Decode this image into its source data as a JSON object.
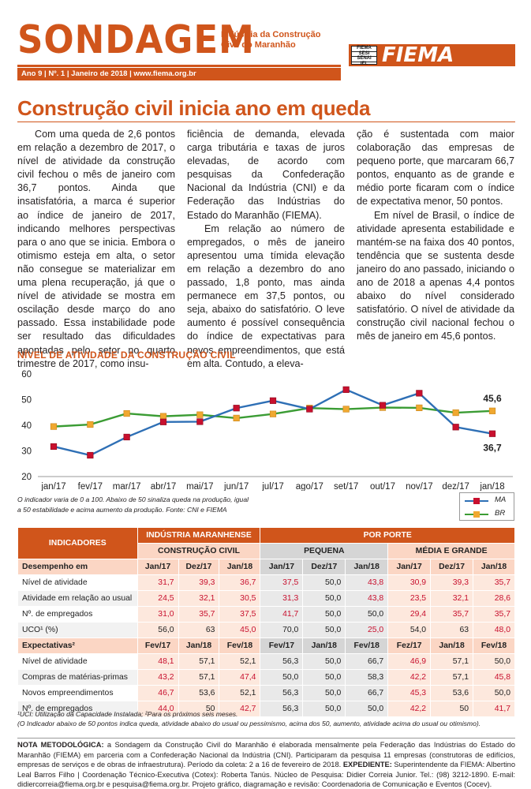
{
  "header": {
    "brand": "SONDAGEM",
    "subtitle_line1": "Indústria da Construção",
    "subtitle_line2": "Civil do Maranhão",
    "edition": "Ano 9 | Nº. 1 | Janeiro de 2018 | www.fiema.org.br",
    "logo_stack": [
      "FIEMA",
      "SESI",
      "SENAI",
      "IEL"
    ],
    "logo": "FIEMA",
    "accent_color": "#d0551b"
  },
  "article": {
    "headline": "Construção civil inicia ano em queda",
    "col1": [
      "Com uma queda de 2,6 pontos em relação a dezembro de 2017, o nível de atividade da construção civil fechou o mês de janeiro com 36,7 pontos. Ainda que insatisfatória, a marca é superior ao índice de janeiro de 2017, indicando melhores perspectivas para o ano que se inicia. Embora o otimismo esteja em alta, o setor não consegue se materializar em uma plena recuperação, já que o nível de atividade se mostra em oscilação desde março do ano passado. Essa instabilidade pode ser resultado das dificuldades apontadas pelo setor no quarto trimestre de 2017, como insu-"
    ],
    "col2_cont": "ficiência de demanda, elevada carga tributária e taxas de juros elevadas, de acordo com pesquisas da Confederação Nacional da Indústria (CNI) e da Federação das Indústrias do Estado do Maranhão (FIEMA).",
    "col2_p2": "Em relação ao número de empregados, o mês de janeiro apresentou uma tímida elevação em relação a dezembro do ano passado, 1,8 ponto, mas ainda permanece em 37,5 pontos, ou seja, abaixo do satisfatório. O leve aumento é possível consequência do índice de expectativas para novos empreendimentos, que está em alta. Contudo, a eleva-",
    "col3_cont": "ção é sustentada com maior colaboração das empresas de pequeno porte, que marcaram 66,7 pontos, enquanto as de grande e médio porte ficaram com o índice de expectativa menor, 50 pontos.",
    "col3_p2": "Em nível de Brasil, o índice de atividade apresenta estabilidade e mantém-se na faixa dos 40 pontos, tendência que se sustenta desde janeiro do ano passado, iniciando o ano de 2018 a apenas 4,4 pontos abaixo do nível considerado satisfatório. O nível de atividade da construção civil nacional fechou o mês de janeiro em 45,6 pontos."
  },
  "chart_title": "NÍVEL DE ATIVIDADE DA CONSTRUÇÃO CIVIL",
  "chart_data": {
    "type": "line",
    "categories": [
      "jan/17",
      "fev/17",
      "mar/17",
      "abr/17",
      "mai/17",
      "jun/17",
      "jul/17",
      "ago/17",
      "set/17",
      "out/17",
      "nov/17",
      "dez/17",
      "jan/18"
    ],
    "series": [
      {
        "name": "MA",
        "color": "#2e6fb5",
        "marker_color": "#c8102e",
        "marker": "square",
        "values": [
          31.7,
          28.3,
          35.4,
          41.3,
          41.4,
          46.7,
          49.6,
          46.3,
          53.9,
          47.8,
          52.5,
          39.3,
          36.7
        ]
      },
      {
        "name": "BR",
        "color": "#3b9c34",
        "marker_color": "#f0a830",
        "marker": "square",
        "values": [
          39.5,
          40.3,
          44.6,
          43.5,
          44.1,
          42.8,
          44.4,
          46.7,
          46.3,
          46.9,
          46.8,
          44.9,
          45.6
        ]
      }
    ],
    "end_labels": [
      "45,6",
      "36,7"
    ],
    "yticks": [
      20,
      30,
      40,
      50,
      60
    ],
    "ylim": [
      20,
      60
    ],
    "grid": false
  },
  "chart_note": [
    "O indicador varia de 0 a 100. Abaixo de 50 sinaliza queda na produção, igual",
    "a 50 estabilidade e acima aumento da produção. Fonte: CNI e FIEMA"
  ],
  "legend": [
    "MA",
    "BR"
  ],
  "table": {
    "h_indicadores": "INDICADORES",
    "h_industria": "INDÚSTRIA MARANHENSE",
    "h_porte": "POR PORTE",
    "h_construcao": "CONSTRUÇÃO CIVIL",
    "h_pequena": "PEQUENA",
    "h_media": "MÉDIA E GRANDE",
    "sections": [
      {
        "title": "Desempenho em",
        "cols": [
          "Jan/17",
          "Dez/17",
          "Jan/18",
          "Jan/17",
          "Dez/17",
          "Jan/18",
          "Jan/17",
          "Dez/17",
          "Jan/18"
        ],
        "rows": [
          {
            "label": "Nível de atividade",
            "values": [
              "31,7",
              "39,3",
              "36,7",
              "37,5",
              "50,0",
              "43,8",
              "30,9",
              "39,3",
              "35,7"
            ],
            "red": [
              1,
              1,
              1,
              1,
              0,
              1,
              1,
              1,
              1
            ]
          },
          {
            "label": "Atividade em relação ao usual",
            "values": [
              "24,5",
              "32,1",
              "30,5",
              "31,3",
              "50,0",
              "43,8",
              "23,5",
              "32,1",
              "28,6"
            ],
            "red": [
              1,
              1,
              1,
              1,
              0,
              1,
              1,
              1,
              1
            ]
          },
          {
            "label": "Nº. de empregados",
            "values": [
              "31,0",
              "35,7",
              "37,5",
              "41,7",
              "50,0",
              "50,0",
              "29,4",
              "35,7",
              "35,7"
            ],
            "red": [
              1,
              1,
              1,
              1,
              0,
              0,
              1,
              1,
              1
            ]
          },
          {
            "label": "UCO¹ (%)",
            "values": [
              "56,0",
              "63",
              "45,0",
              "70,0",
              "50,0",
              "25,0",
              "54,0",
              "63",
              "48,0"
            ],
            "red": [
              0,
              0,
              1,
              0,
              0,
              1,
              0,
              0,
              1
            ]
          }
        ]
      },
      {
        "title": "Expectativas²",
        "cols": [
          "Fev/17",
          "Jan/18",
          "Fev/18",
          "Fev/17",
          "Jan/18",
          "Fev/18",
          "Fez/17",
          "Jan/18",
          "Fev/18"
        ],
        "rows": [
          {
            "label": "Nível de atividade",
            "values": [
              "48,1",
              "57,1",
              "52,1",
              "56,3",
              "50,0",
              "66,7",
              "46,9",
              "57,1",
              "50,0"
            ],
            "red": [
              1,
              0,
              0,
              0,
              0,
              0,
              1,
              0,
              0
            ]
          },
          {
            "label": "Compras de matérias-primas",
            "values": [
              "43,2",
              "57,1",
              "47,4",
              "50,0",
              "50,0",
              "58,3",
              "42,2",
              "57,1",
              "45,8"
            ],
            "red": [
              1,
              0,
              1,
              0,
              0,
              0,
              1,
              0,
              1
            ]
          },
          {
            "label": "Novos empreendimentos",
            "values": [
              "46,7",
              "53,6",
              "52,1",
              "56,3",
              "50,0",
              "66,7",
              "45,3",
              "53,6",
              "50,0"
            ],
            "red": [
              1,
              0,
              0,
              0,
              0,
              0,
              1,
              0,
              0
            ]
          },
          {
            "label": "Nº. de empregados",
            "values": [
              "44,0",
              "50",
              "42,7",
              "56,3",
              "50,0",
              "50,0",
              "42,2",
              "50",
              "41,7"
            ],
            "red": [
              1,
              0,
              1,
              0,
              0,
              0,
              1,
              0,
              1
            ]
          }
        ]
      }
    ]
  },
  "footnotes": [
    "¹UCI: Utilização da Capacidade Instalada; ²Para os próximos seis meses.",
    "(O Indicador abaixo de 50 pontos indica queda, atividade abaixo do usual ou pessimismo, acima dos 50, aumento, atividade acima do usual ou otimismo)."
  ],
  "method": {
    "label1": "NOTA METODOLÓGICA:",
    "text1": " a Sondagem da Construção Civil do Maranhão é elaborada mensalmente pela Federação das Indústrias do Estado do Maranhão (FIEMA) em parceria com a Confederação Nacional da Indústria (CNI). Participaram da pesquisa 11 empresas (construtoras de edifícios, empresas de serviços e de obras de infraestrutura). Período da coleta: 2 a 16 de fevereiro de 2018. ",
    "label2": "EXPEDIENTE:",
    "text2": " Superintendente da FIEMA: Albertino Leal Barros Filho | Coordenação Técnico-Executiva (Cotex): Roberta Tanús. Núcleo de Pesquisa: Didier Correia Junior. Tel.: (98) 3212-1890. E-mail: didiercorreia@fiema.org.br e pesquisa@fiema.org.br. Projeto gráfico, diagramação e revisão: Coordenadoria de Comunicação e Eventos (Cocev)."
  }
}
